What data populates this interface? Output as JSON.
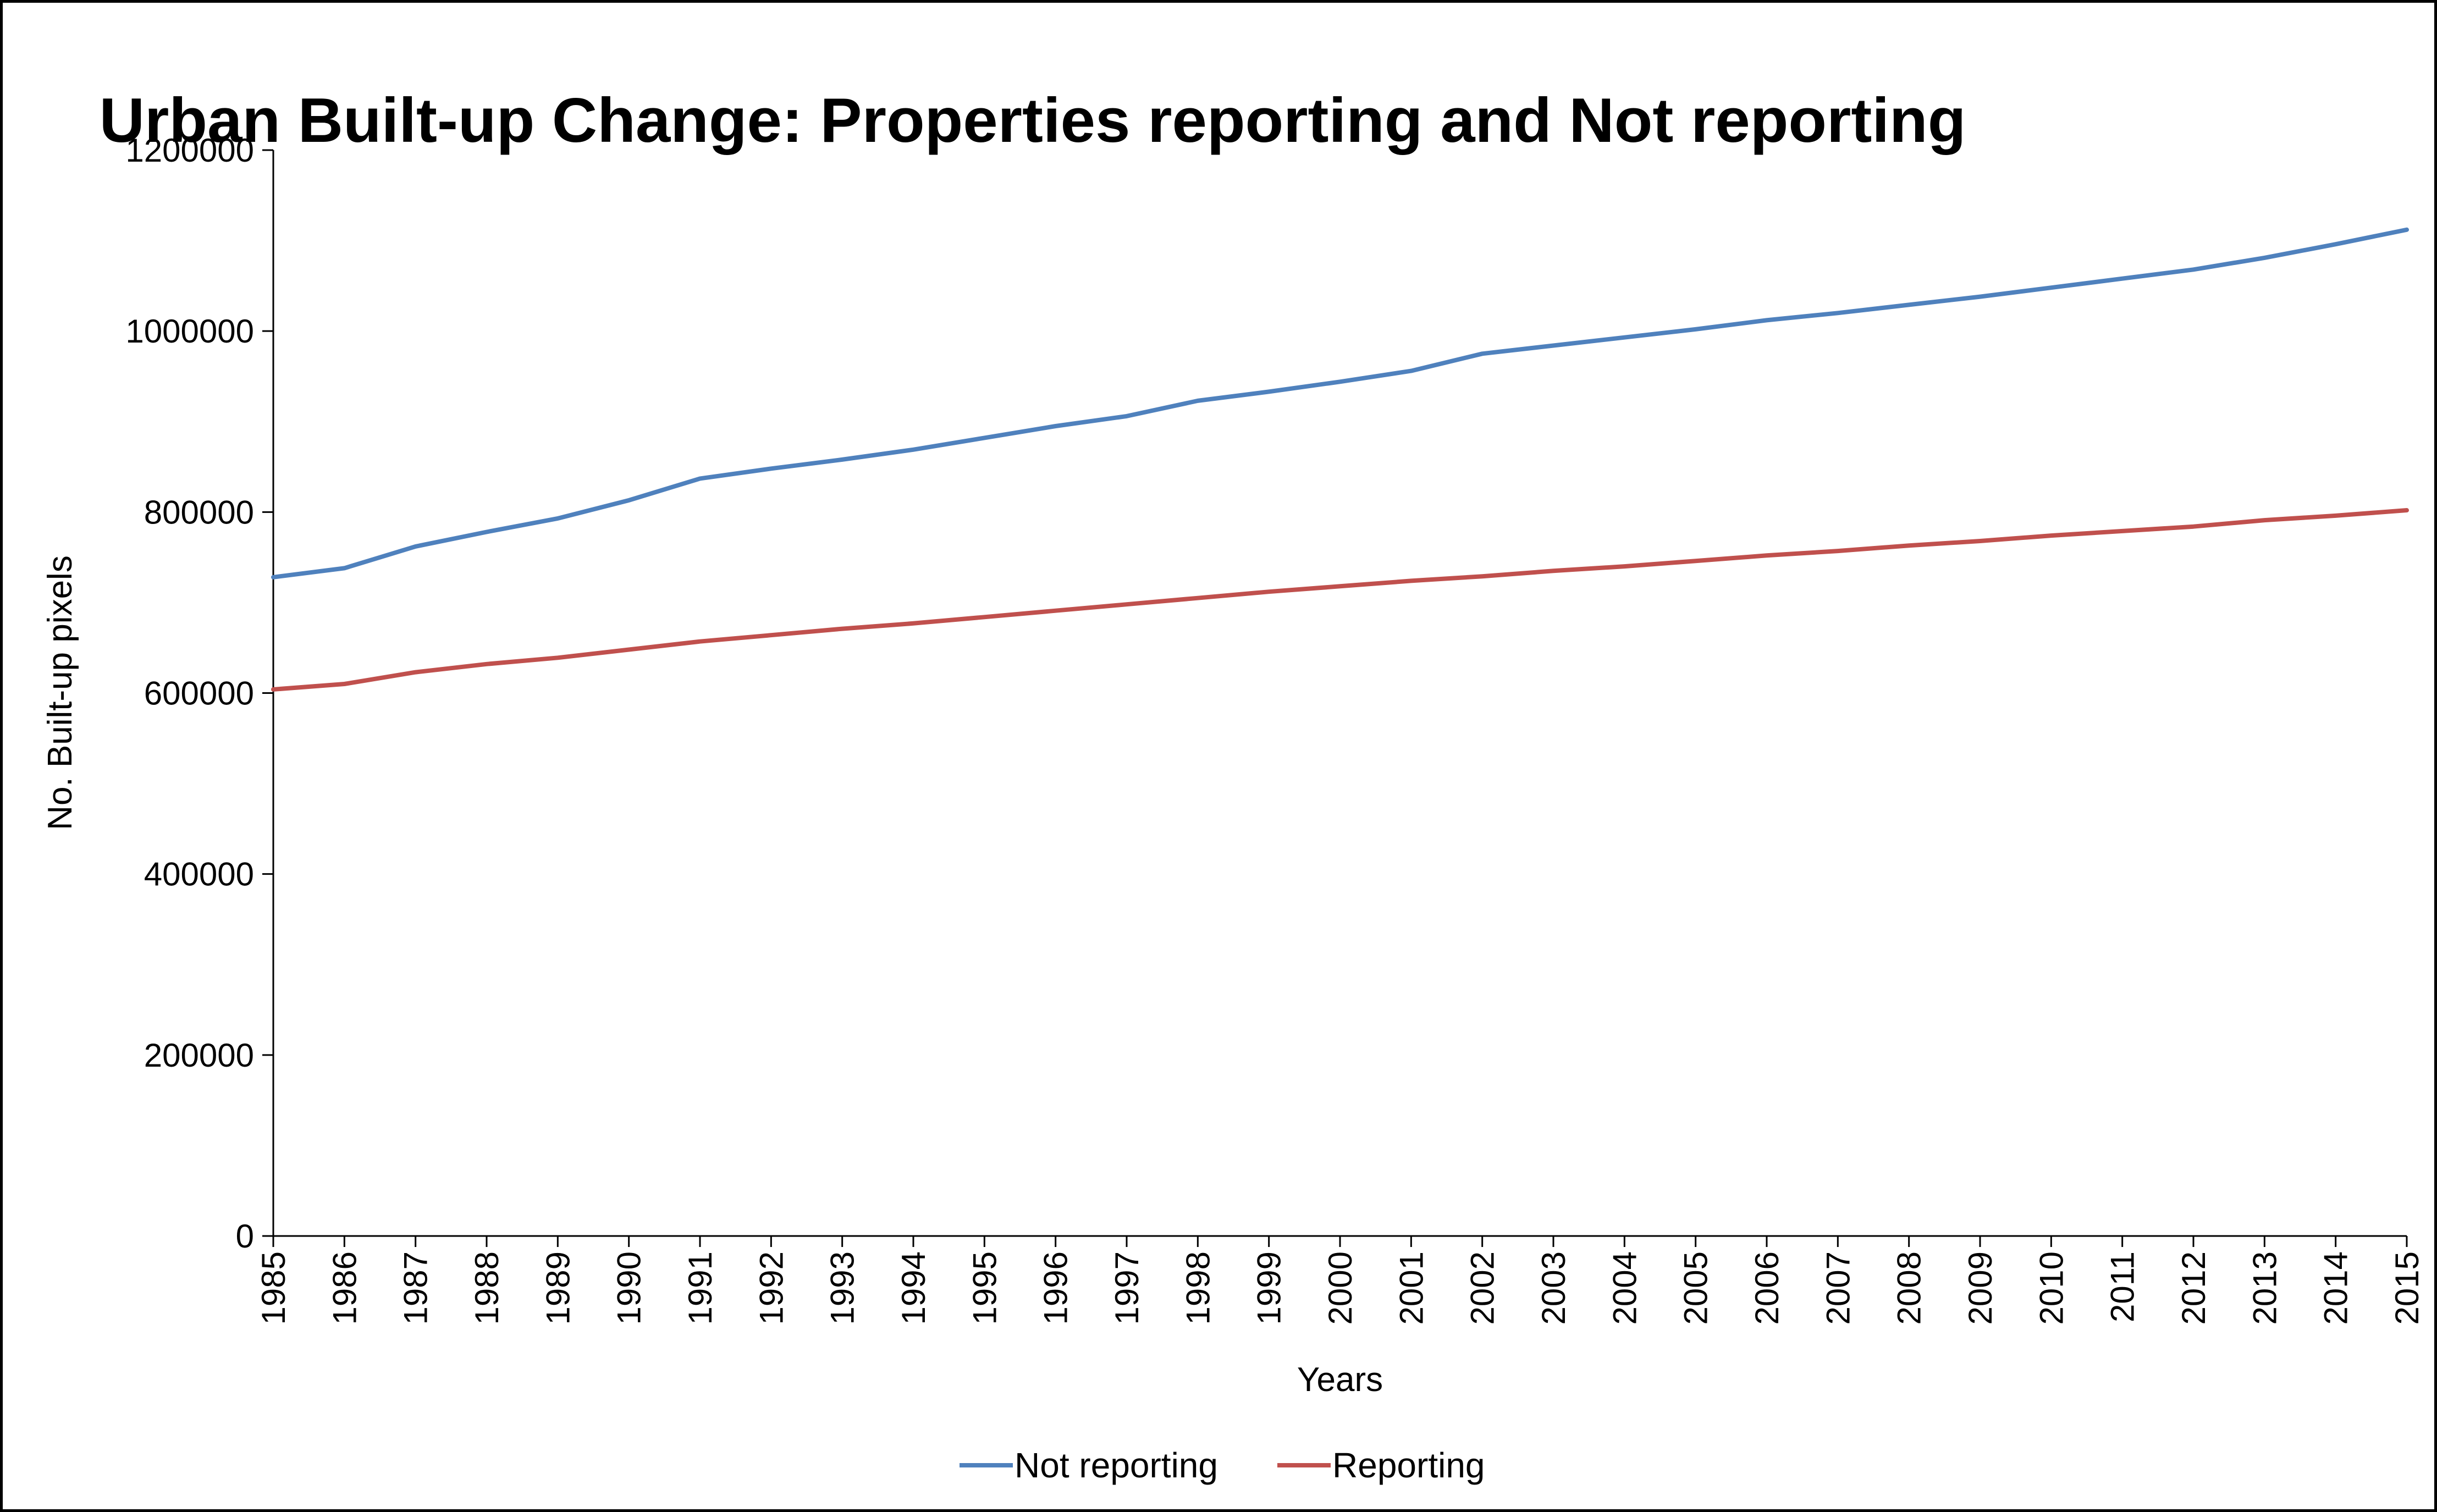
{
  "chart_data": {
    "type": "line",
    "title": "Urban Built-up Change: Properties reporting and Not reporting",
    "xlabel": "Years",
    "ylabel": "No. Built-up pixels",
    "ylim": [
      0,
      1200000
    ],
    "yticks": [
      "0",
      "200000",
      "400000",
      "600000",
      "800000",
      "1000000",
      "1200000"
    ],
    "grid": false,
    "legend_position": "bottom",
    "x": [
      "1985",
      "1986",
      "1987",
      "1988",
      "1989",
      "1990",
      "1991",
      "1992",
      "1993",
      "1994",
      "1995",
      "1996",
      "1997",
      "1998",
      "1999",
      "2000",
      "2001",
      "2002",
      "2003",
      "2004",
      "2005",
      "2006",
      "2007",
      "2008",
      "2009",
      "2010",
      "2011",
      "2012",
      "2013",
      "2014",
      "2015"
    ],
    "series": [
      {
        "name": "Not reporting",
        "color": "#4F81BD",
        "values": [
          728000,
          738000,
          762000,
          778000,
          793000,
          813000,
          837000,
          848000,
          858000,
          869000,
          882000,
          895000,
          906000,
          923000,
          933000,
          944000,
          956000,
          975000,
          984000,
          993000,
          1002000,
          1012000,
          1020000,
          1029000,
          1038000,
          1048000,
          1058000,
          1068000,
          1081000,
          1096000,
          1112000
        ]
      },
      {
        "name": "Reporting",
        "color": "#C0504D",
        "values": [
          604000,
          610000,
          623000,
          632000,
          639000,
          648000,
          657000,
          664000,
          671000,
          677000,
          684000,
          691000,
          698000,
          705000,
          712000,
          718000,
          724000,
          729000,
          735000,
          740000,
          746000,
          752000,
          757000,
          763000,
          768000,
          774000,
          779000,
          784000,
          791000,
          796000,
          802000
        ]
      }
    ]
  }
}
